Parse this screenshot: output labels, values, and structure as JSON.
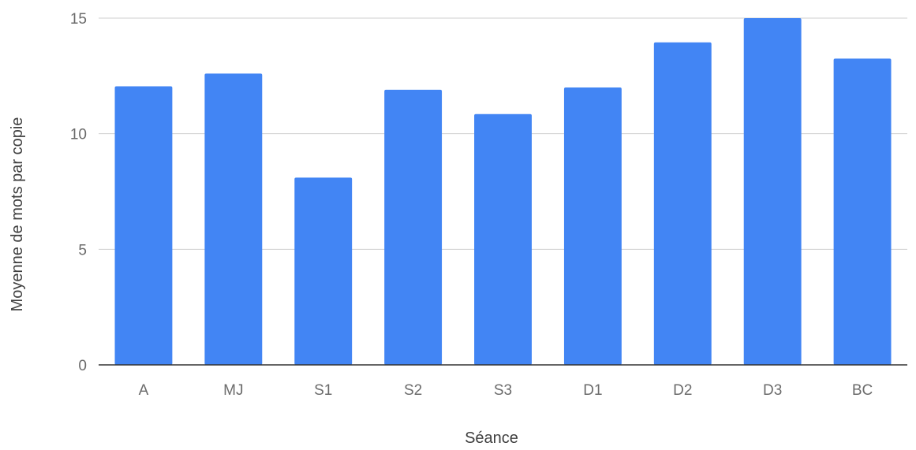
{
  "chart_data": {
    "type": "bar",
    "title": "",
    "xlabel": "Séance",
    "ylabel": "Moyenne de mots par copie",
    "categories": [
      "A",
      "MJ",
      "S1",
      "S2",
      "S3",
      "D1",
      "D2",
      "D3",
      "BC"
    ],
    "series": [
      {
        "values": [
          12.05,
          12.6,
          8.1,
          11.9,
          10.85,
          12.0,
          13.95,
          15.0,
          13.25
        ],
        "color": "#4285f4"
      }
    ],
    "ylim": [
      0,
      15
    ],
    "yticks": [
      0,
      5,
      10,
      15
    ],
    "ytick_labels": [
      "0",
      "5",
      "10",
      "15"
    ],
    "grid": true,
    "legend": "none"
  }
}
